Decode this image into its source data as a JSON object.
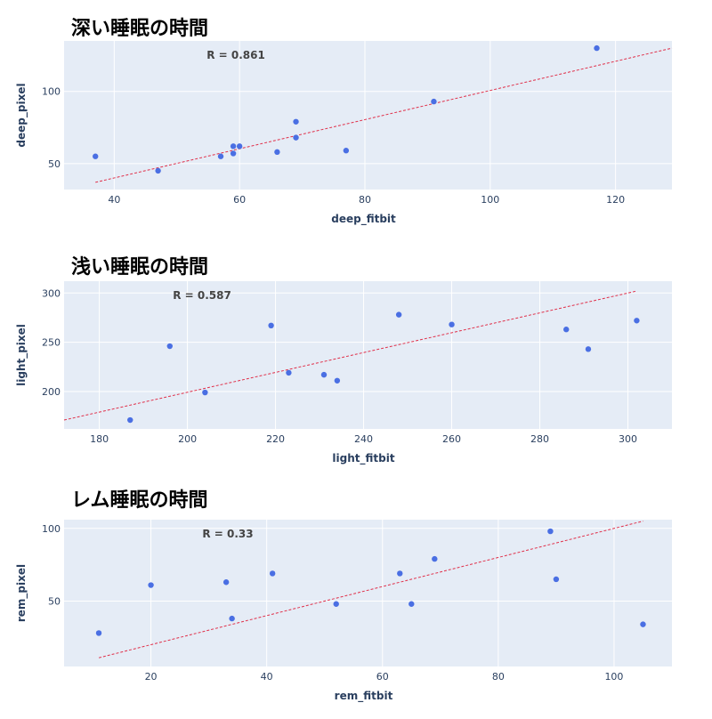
{
  "chart_data": [
    {
      "type": "scatter",
      "title": "深い睡眠の時間",
      "xlabel": "deep_fitbit",
      "ylabel": "deep_pixel",
      "annotation": "R = 0.861",
      "xlim": [
        32,
        129
      ],
      "ylim": [
        32,
        135
      ],
      "xticks": [
        40,
        60,
        80,
        100,
        120
      ],
      "yticks": [
        50,
        100
      ],
      "points": [
        {
          "x": 37,
          "y": 55
        },
        {
          "x": 47,
          "y": 45
        },
        {
          "x": 57,
          "y": 55
        },
        {
          "x": 59,
          "y": 57
        },
        {
          "x": 59,
          "y": 62
        },
        {
          "x": 60,
          "y": 62
        },
        {
          "x": 66,
          "y": 58
        },
        {
          "x": 69,
          "y": 68
        },
        {
          "x": 69,
          "y": 79
        },
        {
          "x": 77,
          "y": 59
        },
        {
          "x": 91,
          "y": 93
        },
        {
          "x": 117,
          "y": 130
        }
      ],
      "trendline": {
        "x": [
          37,
          129
        ],
        "y": [
          37,
          130
        ]
      }
    },
    {
      "type": "scatter",
      "title": "浅い睡眠の時間",
      "xlabel": "light_fitbit",
      "ylabel": "light_pixel",
      "annotation": "R = 0.587",
      "xlim": [
        172,
        310
      ],
      "ylim": [
        162,
        312
      ],
      "xticks": [
        180,
        200,
        220,
        240,
        260,
        280,
        300
      ],
      "yticks": [
        200,
        250,
        300
      ],
      "points": [
        {
          "x": 187,
          "y": 171
        },
        {
          "x": 196,
          "y": 246
        },
        {
          "x": 204,
          "y": 199
        },
        {
          "x": 219,
          "y": 267
        },
        {
          "x": 223,
          "y": 219
        },
        {
          "x": 231,
          "y": 217
        },
        {
          "x": 234,
          "y": 211
        },
        {
          "x": 248,
          "y": 278
        },
        {
          "x": 260,
          "y": 268
        },
        {
          "x": 286,
          "y": 263
        },
        {
          "x": 291,
          "y": 243
        },
        {
          "x": 302,
          "y": 272
        }
      ],
      "trendline": {
        "x": [
          172,
          302
        ],
        "y": [
          171,
          302
        ]
      }
    },
    {
      "type": "scatter",
      "title": "レム睡眠の時間",
      "xlabel": "rem_fitbit",
      "ylabel": "rem_pixel",
      "annotation": "R = 0.33",
      "xlim": [
        5,
        110
      ],
      "ylim": [
        5,
        106
      ],
      "xticks": [
        20,
        40,
        60,
        80,
        100
      ],
      "yticks": [
        50,
        100
      ],
      "points": [
        {
          "x": 11,
          "y": 28
        },
        {
          "x": 20,
          "y": 61
        },
        {
          "x": 33,
          "y": 63
        },
        {
          "x": 34,
          "y": 38
        },
        {
          "x": 41,
          "y": 69
        },
        {
          "x": 52,
          "y": 48
        },
        {
          "x": 63,
          "y": 69
        },
        {
          "x": 65,
          "y": 48
        },
        {
          "x": 69,
          "y": 79
        },
        {
          "x": 89,
          "y": 98
        },
        {
          "x": 90,
          "y": 65
        },
        {
          "x": 105,
          "y": 34
        }
      ],
      "trendline": {
        "x": [
          11,
          105
        ],
        "y": [
          11,
          105
        ]
      }
    }
  ]
}
